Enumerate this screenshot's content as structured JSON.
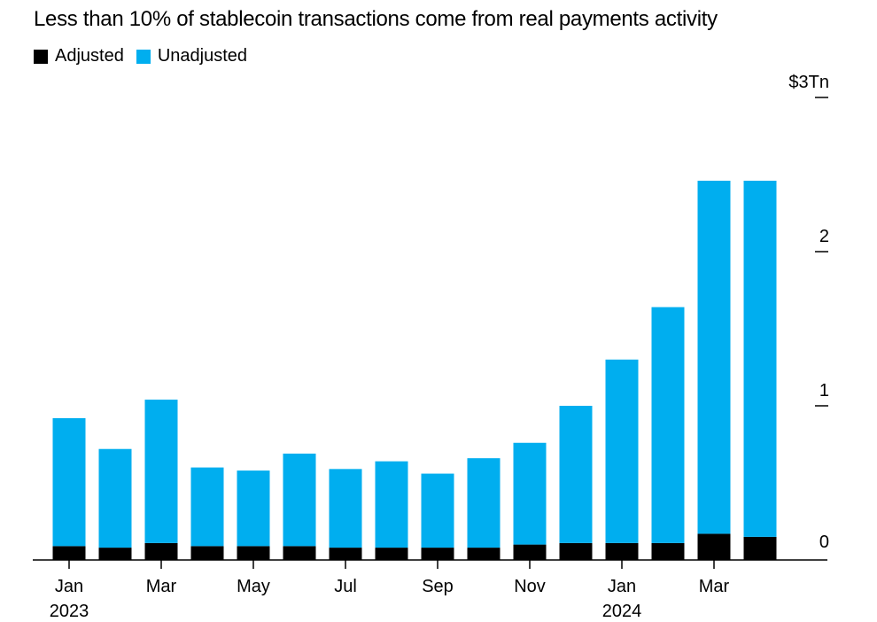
{
  "chart_data": {
    "type": "bar",
    "stacked": true,
    "title": "Less than 10% of stablecoin transactions come from real payments activity",
    "y_unit_label": "$3Tn",
    "ylim": [
      0,
      3
    ],
    "y_ticks": [
      {
        "value": 0,
        "label": "0"
      },
      {
        "value": 1,
        "label": "1"
      },
      {
        "value": 2,
        "label": "2"
      },
      {
        "value": 3,
        "label": "$3Tn"
      }
    ],
    "legend_position": "top-left",
    "categories": [
      "2023-01",
      "2023-02",
      "2023-03",
      "2023-04",
      "2023-05",
      "2023-06",
      "2023-07",
      "2023-08",
      "2023-09",
      "2023-10",
      "2023-11",
      "2023-12",
      "2024-01",
      "2024-02",
      "2024-03",
      "2024-04"
    ],
    "x_tick_labels": [
      {
        "index": 0,
        "label": "Jan",
        "sublabel": "2023"
      },
      {
        "index": 2,
        "label": "Mar",
        "sublabel": ""
      },
      {
        "index": 4,
        "label": "May",
        "sublabel": ""
      },
      {
        "index": 6,
        "label": "Jul",
        "sublabel": ""
      },
      {
        "index": 8,
        "label": "Sep",
        "sublabel": ""
      },
      {
        "index": 10,
        "label": "Nov",
        "sublabel": ""
      },
      {
        "index": 12,
        "label": "Jan",
        "sublabel": "2024"
      },
      {
        "index": 14,
        "label": "Mar",
        "sublabel": ""
      }
    ],
    "series": [
      {
        "name": "Adjusted",
        "color": "#000000",
        "values": [
          0.09,
          0.08,
          0.11,
          0.09,
          0.09,
          0.09,
          0.08,
          0.08,
          0.08,
          0.08,
          0.1,
          0.11,
          0.11,
          0.11,
          0.17,
          0.15
        ]
      },
      {
        "name": "Unadjusted",
        "color": "#00aeef",
        "values": [
          0.83,
          0.64,
          0.93,
          0.51,
          0.49,
          0.6,
          0.51,
          0.56,
          0.48,
          0.58,
          0.66,
          0.89,
          1.19,
          1.53,
          2.29,
          2.31
        ]
      }
    ]
  }
}
